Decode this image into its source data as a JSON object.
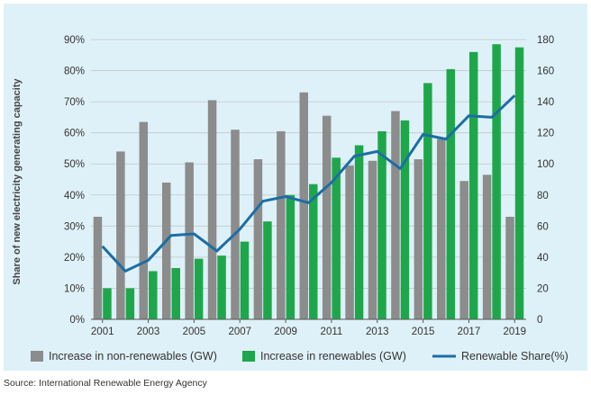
{
  "chart_data": {
    "type": "bar",
    "title": "",
    "ylabel_left": "Share of new electricity generating capacity",
    "ylabel_right": "",
    "x": [
      2001,
      2002,
      2003,
      2004,
      2005,
      2006,
      2007,
      2008,
      2009,
      2010,
      2011,
      2012,
      2013,
      2014,
      2015,
      2016,
      2017,
      2018,
      2019
    ],
    "x_tick_labels": [
      "2001",
      "2003",
      "2005",
      "2007",
      "2009",
      "2011",
      "2013",
      "2015",
      "2017",
      "2019"
    ],
    "left_axis": {
      "range": [
        0,
        90
      ],
      "ticks": [
        "0%",
        "10%",
        "20%",
        "30%",
        "40%",
        "50%",
        "60%",
        "70%",
        "80%",
        "90%"
      ]
    },
    "right_axis": {
      "range": [
        0,
        180
      ],
      "ticks": [
        "0",
        "20",
        "40",
        "60",
        "80",
        "100",
        "120",
        "140",
        "160",
        "180"
      ]
    },
    "grid": true,
    "legend_position": "bottom",
    "series": [
      {
        "name": "Increase in non-renewables (GW)",
        "type": "bar",
        "axis": "right",
        "color": "#8c8c8c",
        "values": [
          66,
          108,
          127,
          88,
          101,
          141,
          122,
          103,
          121,
          146,
          131,
          99,
          102,
          134,
          103,
          116,
          89,
          93,
          66
        ]
      },
      {
        "name": "Increase in renewables (GW)",
        "type": "bar",
        "axis": "right",
        "color": "#1ea74a",
        "values": [
          20,
          20,
          31,
          33,
          39,
          41,
          50,
          63,
          80,
          87,
          104,
          112,
          121,
          128,
          152,
          161,
          172,
          177,
          175
        ]
      },
      {
        "name": "Renewable Share(%)",
        "type": "line",
        "axis": "left",
        "color": "#1c6ea4",
        "values": [
          23.5,
          15.5,
          19,
          27,
          27.5,
          22,
          29,
          38,
          39.5,
          37.5,
          44,
          52.5,
          54,
          48.5,
          59.5,
          58,
          65.5,
          65,
          72
        ]
      }
    ]
  },
  "source": "Source: International Renewable Energy Agency"
}
